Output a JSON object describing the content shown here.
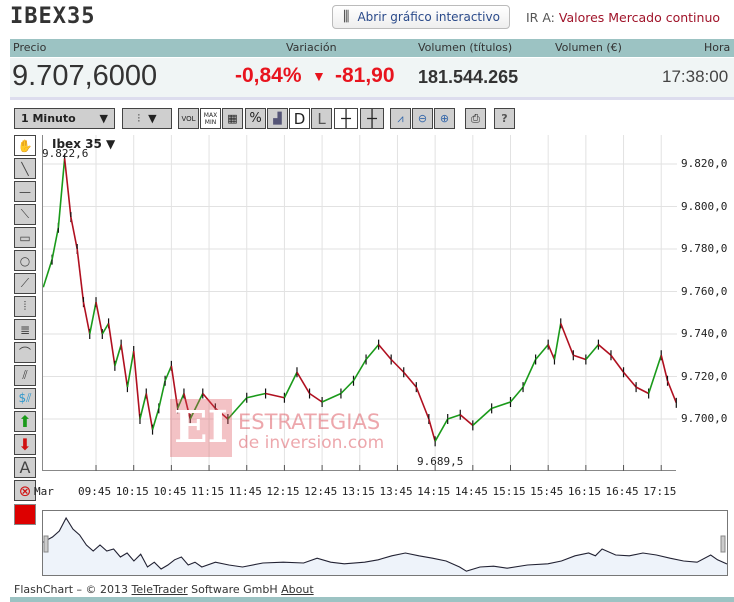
{
  "title": "IBEX35",
  "open_chart_label": "Abrir gráfico interactivo",
  "goto": {
    "label": "IR A:",
    "link": "Valores Mercado continuo"
  },
  "header": {
    "precio": "Precio",
    "variacion": "Variación",
    "vol_titulos": "Volumen (títulos)",
    "vol_eur": "Volumen (€)",
    "hora": "Hora"
  },
  "values": {
    "precio": "9.707,6000",
    "pct": "-0,84%",
    "abs": "-81,90",
    "vol_titulos": "181.544.265",
    "vol_eur": "",
    "hora": "17:38:00"
  },
  "colors": {
    "negative": "#e8141e",
    "up": "#1a9a1a",
    "down": "#b01020",
    "header": "#9cc3c3"
  },
  "toolbar": {
    "interval": "1 Minuto",
    "buttons": [
      "VOL",
      "MAX MIN",
      "grid",
      "%",
      "area",
      "D",
      "L",
      "crosshair",
      "crosshair-L",
      "add-indicator",
      "zoom-out",
      "zoom-in",
      "print",
      "?"
    ]
  },
  "chart": {
    "symbol": "Ibex 35",
    "max_label": "9.822,6",
    "min_label": "9.689,5",
    "watermark": {
      "brand": "ESTRATEGIAS",
      "sub": "de inversion.com"
    },
    "x_first": "Mar",
    "x_ticks": [
      "09:45",
      "10:15",
      "10:45",
      "11:15",
      "11:45",
      "12:15",
      "12:45",
      "13:15",
      "13:45",
      "14:15",
      "14:45",
      "15:15",
      "15:45",
      "16:15",
      "16:45",
      "17:15"
    ],
    "y_ticks": [
      "9.820,0",
      "9.800,0",
      "9.780,0",
      "9.760,0",
      "9.740,0",
      "9.720,0",
      "9.700,0"
    ]
  },
  "chart_data": {
    "type": "line",
    "ylim": [
      9680,
      9835
    ],
    "x": [
      "09:03",
      "09:10",
      "09:15",
      "09:20",
      "09:25",
      "09:30",
      "09:35",
      "09:40",
      "09:45",
      "09:50",
      "09:55",
      "10:00",
      "10:05",
      "10:10",
      "10:15",
      "10:20",
      "10:25",
      "10:30",
      "10:35",
      "10:40",
      "10:45",
      "10:50",
      "10:55",
      "11:00",
      "11:10",
      "11:20",
      "11:30",
      "11:45",
      "12:00",
      "12:15",
      "12:25",
      "12:35",
      "12:45",
      "13:00",
      "13:10",
      "13:20",
      "13:30",
      "13:40",
      "13:50",
      "14:00",
      "14:10",
      "14:15",
      "14:25",
      "14:35",
      "14:45",
      "15:00",
      "15:15",
      "15:25",
      "15:35",
      "15:45",
      "15:50",
      "15:55",
      "16:05",
      "16:15",
      "16:25",
      "16:35",
      "16:45",
      "16:55",
      "17:05",
      "17:15",
      "17:20",
      "17:27"
    ],
    "y": [
      9762,
      9775,
      9790,
      9822.6,
      9795,
      9780,
      9755,
      9740,
      9755,
      9740,
      9745,
      9725,
      9735,
      9715,
      9732,
      9700,
      9712,
      9695,
      9705,
      9718,
      9725,
      9705,
      9712,
      9700,
      9712,
      9705,
      9700,
      9710,
      9712,
      9710,
      9722,
      9712,
      9708,
      9712,
      9718,
      9728,
      9735,
      9728,
      9722,
      9715,
      9700,
      9689.5,
      9700,
      9702,
      9697,
      9705,
      9708,
      9715,
      9728,
      9735,
      9728,
      9745,
      9730,
      9728,
      9735,
      9730,
      9722,
      9715,
      9712,
      9730,
      9718,
      9707.6
    ]
  },
  "footer": {
    "prefix": "FlashChart – © 2013",
    "teletrader": "TeleTrader",
    "suffix": "Software GmbH",
    "about": "About"
  }
}
